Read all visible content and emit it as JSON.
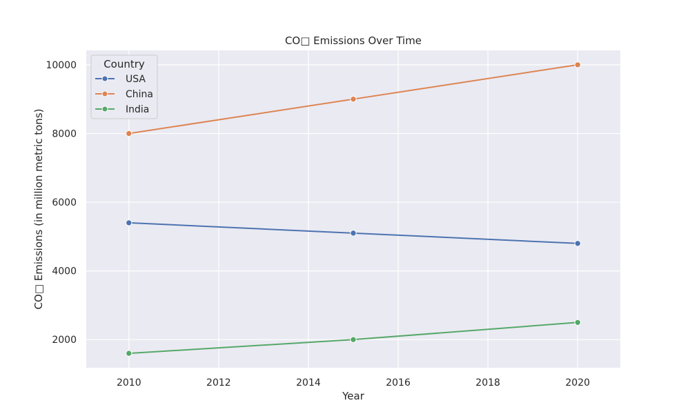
{
  "chart_data": {
    "type": "line",
    "title": "CO□ Emissions Over Time",
    "xlabel": "Year",
    "ylabel": "CO□ Emissions (in million metric tons)",
    "xlim": [
      2009.05,
      2020.95
    ],
    "ylim": [
      1180,
      10420
    ],
    "x_ticks": [
      2010,
      2012,
      2014,
      2016,
      2018,
      2020
    ],
    "y_ticks": [
      2000,
      4000,
      6000,
      8000,
      10000
    ],
    "grid": true,
    "legend": {
      "title": "Country",
      "placement": "top-left"
    },
    "x": [
      2010,
      2015,
      2020
    ],
    "series": [
      {
        "name": "USA",
        "color": "#4c72b0",
        "values": [
          5400,
          5100,
          4800
        ]
      },
      {
        "name": "China",
        "color": "#dd8452",
        "values": [
          8000,
          9000,
          10000
        ]
      },
      {
        "name": "India",
        "color": "#55a868",
        "values": [
          1600,
          2000,
          2500
        ]
      }
    ]
  },
  "colors": {
    "plot_background": "#eaeaf2",
    "grid": "#ffffff",
    "text": "#262626"
  }
}
